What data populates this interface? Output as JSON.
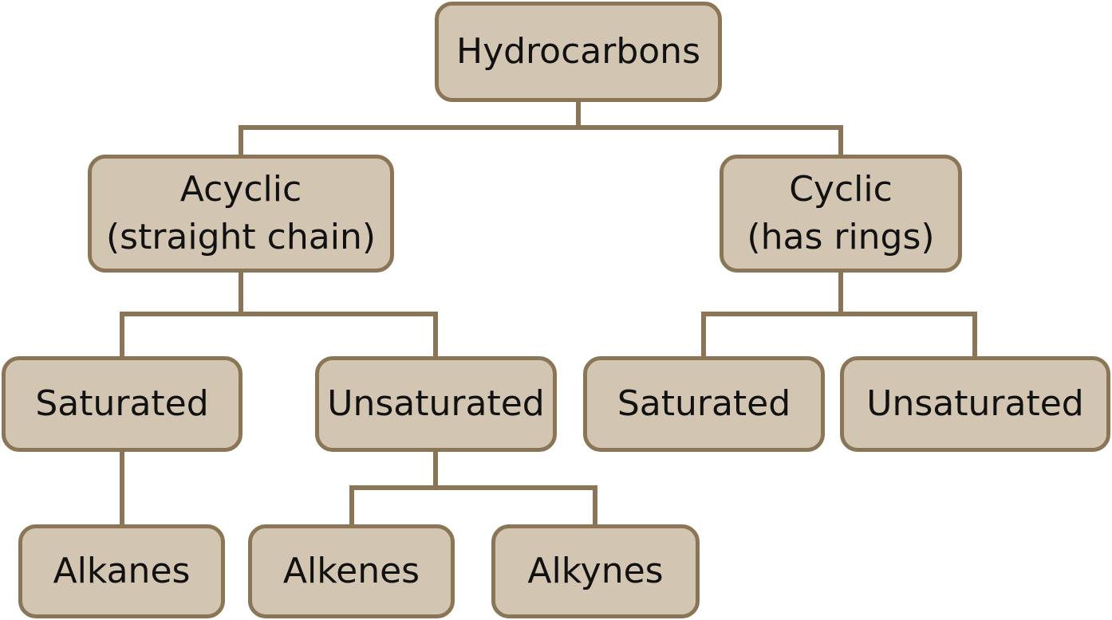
{
  "diagram": {
    "root": {
      "label": "Hydrocarbons"
    },
    "acyclic": {
      "line1": "Acyclic",
      "line2": "(straight chain)"
    },
    "cyclic": {
      "line1": "Cyclic",
      "line2": "(has rings)"
    },
    "acyclic_children": {
      "saturated": "Saturated",
      "unsaturated": "Unsaturated"
    },
    "cyclic_children": {
      "saturated": "Saturated",
      "unsaturated": "Unsaturated"
    },
    "leaves": {
      "alkanes": "Alkanes",
      "alkenes": "Alkenes",
      "alkynes": "Alkynes"
    },
    "colors": {
      "box_fill": "#d2c5b1",
      "box_border": "#8a7656",
      "connector": "#8a7656",
      "text": "#111111"
    }
  }
}
